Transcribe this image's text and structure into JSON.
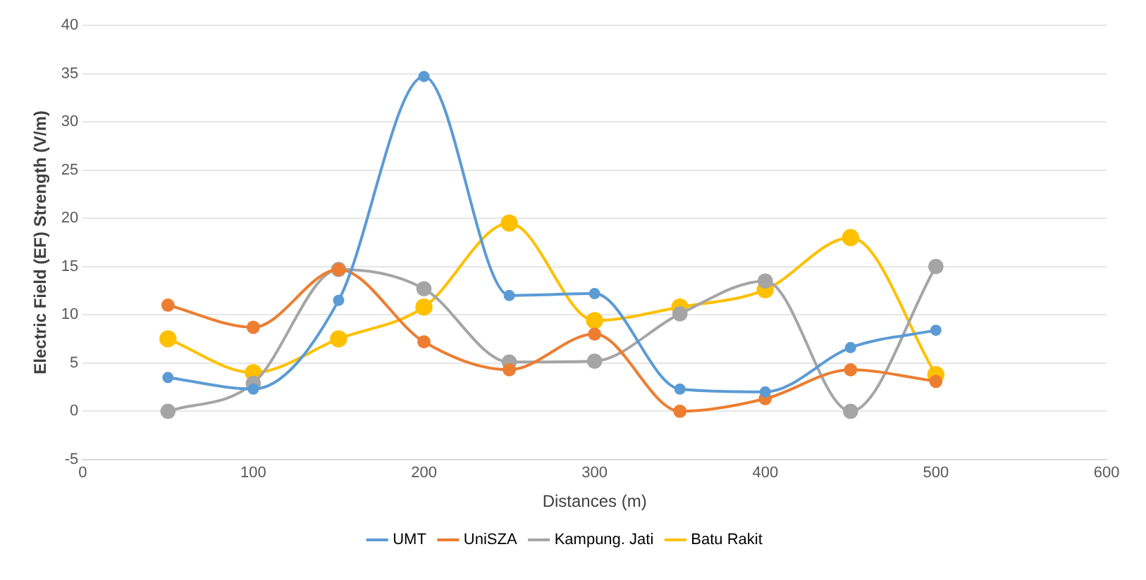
{
  "chart_data": {
    "type": "line",
    "xlabel": "Distances (m)",
    "ylabel": "Electric Field (EF) Strength (V/m)",
    "x": [
      50,
      100,
      150,
      200,
      250,
      300,
      350,
      400,
      450,
      500
    ],
    "series": [
      {
        "name": "UMT",
        "color": "#5b9bd5",
        "values": [
          3.5,
          2.3,
          11.5,
          34.7,
          12,
          12.2,
          2.3,
          2,
          6.6,
          8.4
        ]
      },
      {
        "name": "UniSZA",
        "color": "#ed7d31",
        "values": [
          11,
          8.7,
          14.7,
          7.2,
          4.3,
          8,
          0,
          1.3,
          4.3,
          3.1
        ]
      },
      {
        "name": "Kampung. Jati",
        "color": "#a5a5a5",
        "values": [
          0,
          2.9,
          14.7,
          12.7,
          5.1,
          5.2,
          10.1,
          13.5,
          0,
          15
        ]
      },
      {
        "name": "Batu Rakit",
        "color": "#ffc000",
        "values": [
          7.5,
          4,
          7.5,
          10.8,
          19.5,
          9.4,
          10.8,
          12.6,
          18,
          3.8
        ]
      }
    ],
    "xlim": [
      0,
      600
    ],
    "xticks": [
      0,
      100,
      200,
      300,
      400,
      500,
      600
    ],
    "ylim": [
      -5,
      40
    ],
    "yticks": [
      -5,
      0,
      5,
      10,
      15,
      20,
      25,
      30,
      35,
      40
    ],
    "grid": "y",
    "legend": "bottom",
    "marker": "circle",
    "line_style": "solid"
  }
}
